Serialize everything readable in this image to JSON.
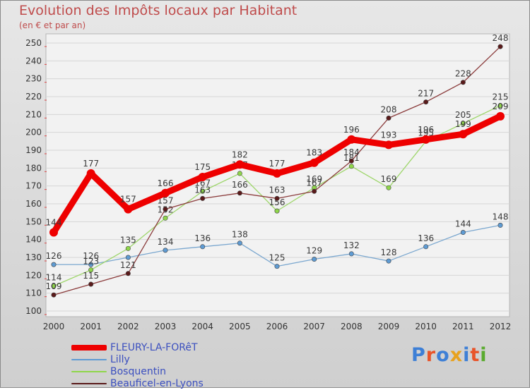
{
  "title": "Evolution des Impôts locaux par Habitant",
  "subtitle": "(en € et par an)",
  "logo": {
    "text": "Proxiti",
    "letter_colors": [
      "#3d7fd6",
      "#e8542a",
      "#3d7fd6",
      "#e8a21e",
      "#3d7fd6",
      "#e8542a",
      "#5aab2f"
    ]
  },
  "chart_data": {
    "type": "line",
    "title": "Evolution des Impôts locaux par Habitant",
    "subtitle": "(en € et par an)",
    "xlabel": "",
    "ylabel": "",
    "ylim": [
      100,
      250
    ],
    "yticks": [
      100,
      110,
      120,
      130,
      140,
      150,
      160,
      170,
      180,
      190,
      200,
      210,
      220,
      230,
      240,
      250
    ],
    "x": [
      "2000",
      "2001",
      "2002",
      "2003",
      "2004",
      "2005",
      "2006",
      "2007",
      "2008",
      "2009",
      "2010",
      "2011",
      "2012"
    ],
    "grid": "horizontal",
    "legend": "bottom-left",
    "series": [
      {
        "name": "Lilly",
        "color": "#5e9bd3",
        "line_color": "#7aa7cf",
        "emphasis": false,
        "values": [
          126,
          126,
          130,
          134,
          136,
          138,
          125,
          129,
          132,
          128,
          136,
          144,
          148
        ],
        "labels": [
          "126",
          "126",
          "",
          "134",
          "136",
          "138",
          "125",
          "129",
          "132",
          "128",
          "136",
          "144",
          "148"
        ]
      },
      {
        "name": "Bosquentin",
        "color": "#8fd64a",
        "line_color": "#9ed66b",
        "emphasis": false,
        "values": [
          114,
          123,
          135,
          152,
          167,
          177,
          156,
          169,
          181,
          169,
          195,
          205,
          215
        ],
        "labels": [
          "114",
          "123",
          "135",
          "152",
          "167",
          "177",
          "156",
          "169",
          "181",
          "169",
          "195",
          "205",
          "215"
        ]
      },
      {
        "name": "Beauficel-en-Lyons",
        "color": "#5a1a1a",
        "line_color": "#8b3c3c",
        "emphasis": false,
        "values": [
          109,
          115,
          121,
          157,
          163,
          166,
          163,
          167,
          184,
          208,
          217,
          228,
          248
        ],
        "labels": [
          "109",
          "115",
          "121",
          "157",
          "163",
          "166",
          "163",
          "167",
          "184",
          "208",
          "217",
          "228",
          "248"
        ]
      },
      {
        "name": "FLEURY-LA-FORêT",
        "color": "#ee0000",
        "line_color": "#ee0000",
        "emphasis": true,
        "values": [
          144,
          177,
          157,
          166,
          175,
          182,
          177,
          183,
          196,
          193,
          196,
          199,
          209
        ],
        "labels": [
          "144",
          "177",
          "157",
          "166",
          "175",
          "182",
          "177",
          "183",
          "196",
          "193",
          "196",
          "199",
          "209"
        ]
      }
    ],
    "legend_order": [
      "FLEURY-LA-FORêT",
      "Lilly",
      "Bosquentin",
      "Beauficel-en-Lyons"
    ],
    "legend_colors": [
      "#ee0000",
      "#5e9bd3",
      "#8fd64a",
      "#5a1a1a"
    ]
  }
}
